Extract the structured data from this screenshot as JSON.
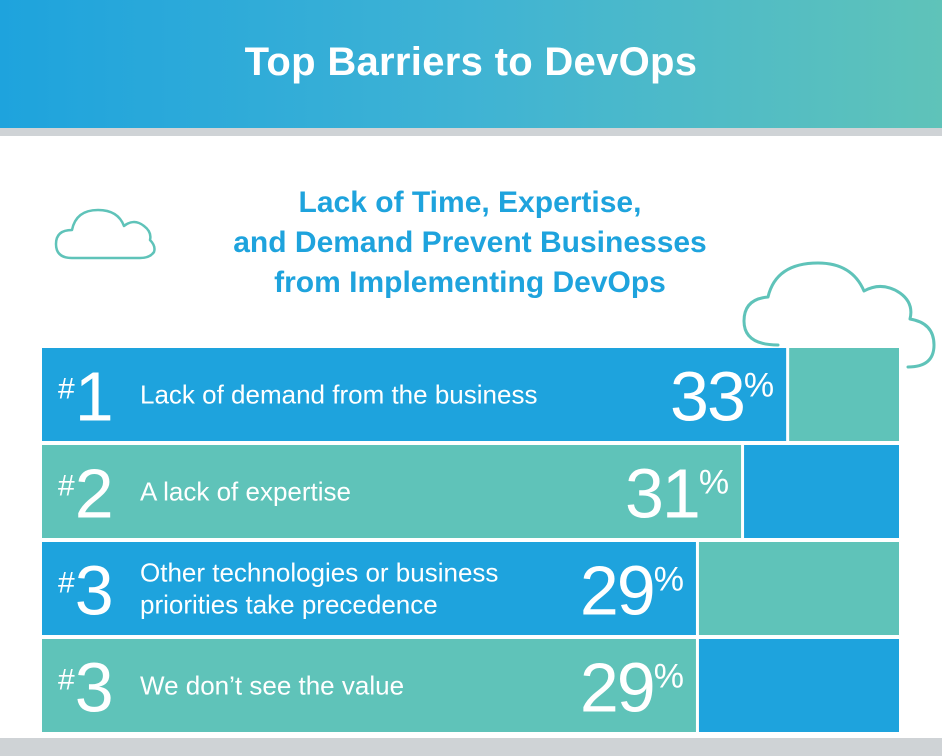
{
  "header": {
    "title": "Top Barriers to DevOps"
  },
  "subtitle_lines": [
    "Lack of Time, Expertise,",
    "and Demand Prevent Businesses",
    "from Implementing DevOps"
  ],
  "colors": {
    "blue": "#1ea3dd",
    "teal": "#5fc3b9",
    "header_gradient_start": "#1ea3dd",
    "header_gradient_end": "#5fc3b9",
    "rule": "#cfd3d6"
  },
  "icons": [
    "cloud-icon",
    "cloud-icon"
  ],
  "chart_data": {
    "type": "bar",
    "orientation": "horizontal",
    "value_suffix": "%",
    "ylim": [
      0,
      35
    ],
    "bars": [
      {
        "rank": "#1",
        "label_lines": [
          "Lack of demand from the business"
        ],
        "value": 33,
        "color": "blue"
      },
      {
        "rank": "#2",
        "label_lines": [
          "A lack of expertise"
        ],
        "value": 31,
        "color": "teal"
      },
      {
        "rank": "#3",
        "label_lines": [
          "Other technologies or business",
          "priorities take precedence"
        ],
        "value": 29,
        "color": "blue"
      },
      {
        "rank": "#3",
        "label_lines": [
          "We don’t see the value"
        ],
        "value": 29,
        "color": "teal"
      }
    ]
  }
}
